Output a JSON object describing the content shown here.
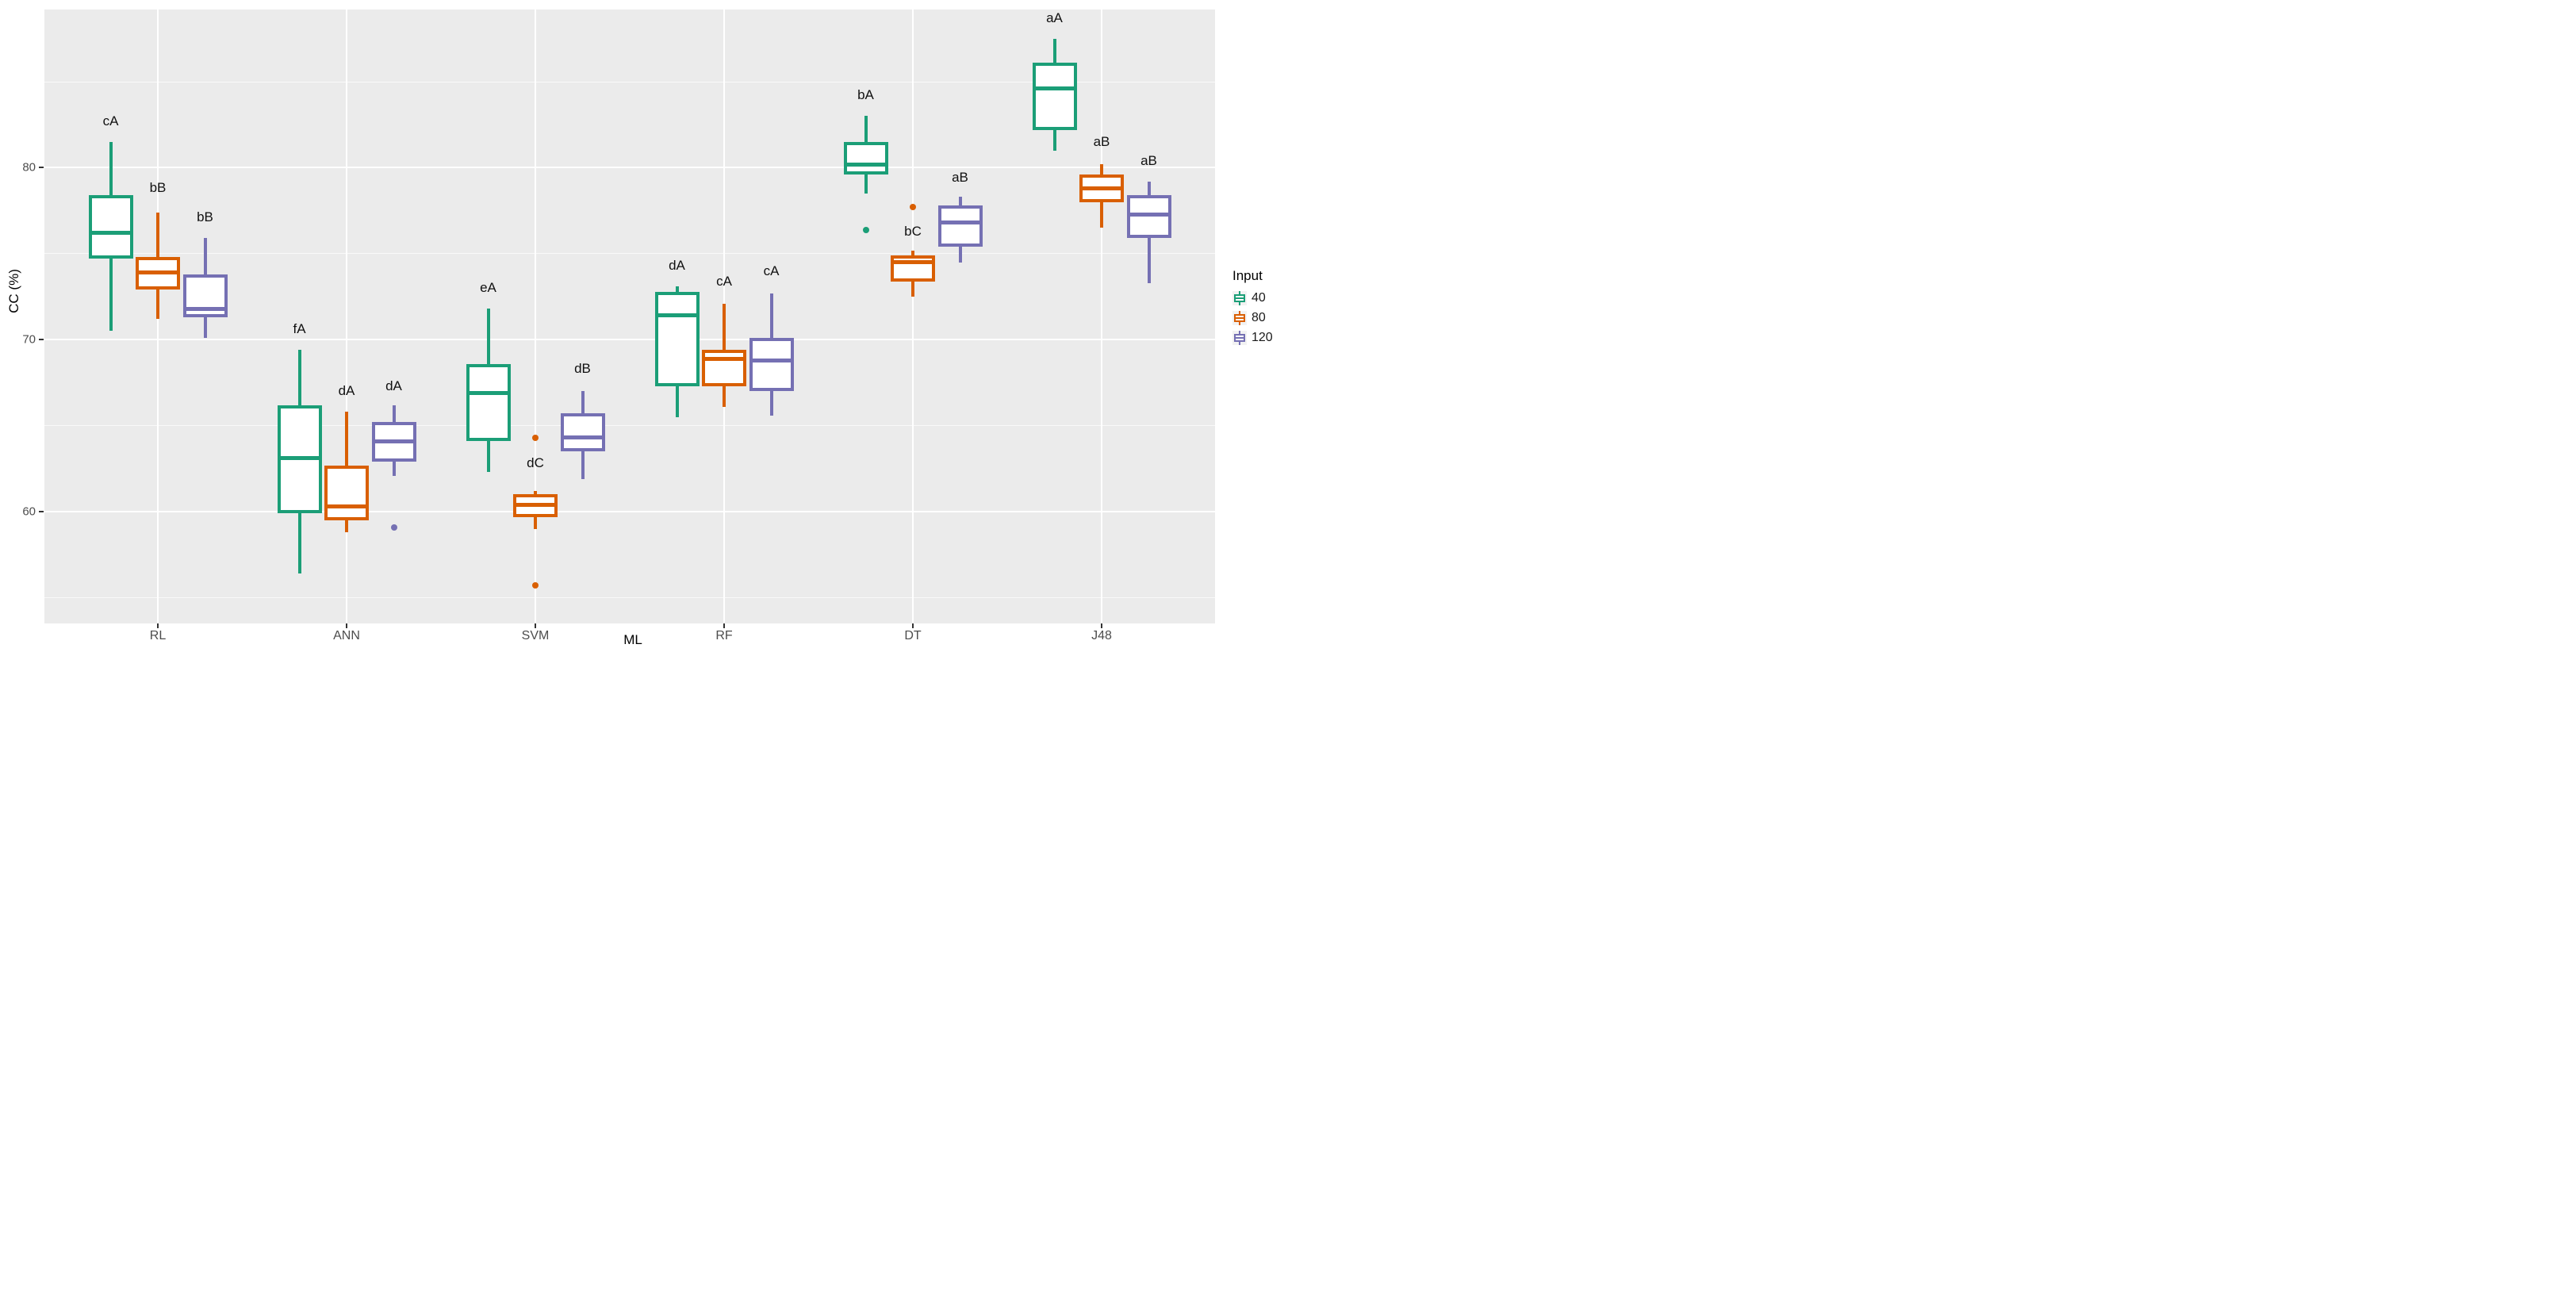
{
  "figure": {
    "y_axis": {
      "title": "CC (%)",
      "major_ticks": [
        80,
        70,
        60
      ],
      "minor_ticks": [
        85,
        75,
        65,
        55
      ],
      "domain_top": 89.2,
      "domain_bottom": 53.5
    },
    "x_axis": {
      "title": "ML",
      "categories": [
        "RL",
        "ANN",
        "SVM",
        "RF",
        "DT",
        "J48"
      ]
    },
    "legend": {
      "title": "Input",
      "items": [
        {
          "label": "40",
          "color": "#1B9E77"
        },
        {
          "label": "80",
          "color": "#D95F02"
        },
        {
          "label": "120",
          "color": "#7570B3"
        }
      ]
    },
    "colors": {
      "panel_bg": "#EBEBEB",
      "grid": "#FFFFFF",
      "axis_text": "#4D4D4D",
      "title_text": "#000000",
      "sig_text": "#111111",
      "legend_key_bg": "#F2F2F2",
      "green": "#1B9E77",
      "orange": "#D95F02",
      "purple": "#7570B3"
    }
  },
  "chart_data": {
    "type": "boxplot",
    "title": "",
    "xlabel": "ML",
    "ylabel": "CC (%)",
    "ylim": [
      53.5,
      89.2
    ],
    "grid": "major-and-minor",
    "legend_position": "right",
    "categories": [
      "RL",
      "ANN",
      "SVM",
      "RF",
      "DT",
      "J48"
    ],
    "series": [
      {
        "name": "40",
        "color": "#1B9E77",
        "boxes": [
          {
            "category": "RL",
            "low": 70.5,
            "q1": 74.7,
            "median": 76.2,
            "q3": 78.4,
            "high": 81.5,
            "outliers": [],
            "sig_label": "cA",
            "sig_label_y": 82.7
          },
          {
            "category": "ANN",
            "low": 56.4,
            "q1": 59.9,
            "median": 63.1,
            "q3": 66.2,
            "high": 69.4,
            "outliers": [],
            "sig_label": "fA",
            "sig_label_y": 70.6
          },
          {
            "category": "SVM",
            "low": 62.3,
            "q1": 64.1,
            "median": 66.9,
            "q3": 68.6,
            "high": 71.8,
            "outliers": [],
            "sig_label": "eA",
            "sig_label_y": 73.0
          },
          {
            "category": "RF",
            "low": 65.5,
            "q1": 67.3,
            "median": 71.4,
            "q3": 72.8,
            "high": 73.1,
            "outliers": [],
            "sig_label": "dA",
            "sig_label_y": 74.3
          },
          {
            "category": "DT",
            "low": 78.5,
            "q1": 79.6,
            "median": 80.2,
            "q3": 81.5,
            "high": 83.0,
            "outliers": [
              76.4
            ],
            "sig_label": "bA",
            "sig_label_y": 84.2
          },
          {
            "category": "J48",
            "low": 81.0,
            "q1": 82.2,
            "median": 84.6,
            "q3": 86.1,
            "high": 87.5,
            "outliers": [],
            "sig_label": "aA",
            "sig_label_y": 88.7
          }
        ]
      },
      {
        "name": "80",
        "color": "#D95F02",
        "boxes": [
          {
            "category": "RL",
            "low": 71.2,
            "q1": 72.9,
            "median": 73.9,
            "q3": 74.8,
            "high": 77.4,
            "outliers": [],
            "sig_label": "bB",
            "sig_label_y": 78.8
          },
          {
            "category": "ANN",
            "low": 58.8,
            "q1": 59.5,
            "median": 60.3,
            "q3": 62.7,
            "high": 65.8,
            "outliers": [],
            "sig_label": "dA",
            "sig_label_y": 67.0
          },
          {
            "category": "SVM",
            "low": 59.0,
            "q1": 59.7,
            "median": 60.4,
            "q3": 61.0,
            "high": 61.2,
            "outliers": [
              64.3,
              55.7
            ],
            "sig_label": "dC",
            "sig_label_y": 62.8
          },
          {
            "category": "RF",
            "low": 66.1,
            "q1": 67.3,
            "median": 68.9,
            "q3": 69.4,
            "high": 72.1,
            "outliers": [],
            "sig_label": "cA",
            "sig_label_y": 73.4
          },
          {
            "category": "DT",
            "low": 72.5,
            "q1": 73.4,
            "median": 74.5,
            "q3": 74.9,
            "high": 75.2,
            "outliers": [
              77.7
            ],
            "sig_label": "bC",
            "sig_label_y": 76.3
          },
          {
            "category": "J48",
            "low": 76.5,
            "q1": 78.0,
            "median": 78.8,
            "q3": 79.6,
            "high": 80.2,
            "outliers": [],
            "sig_label": "aB",
            "sig_label_y": 81.5
          }
        ]
      },
      {
        "name": "120",
        "color": "#7570B3",
        "boxes": [
          {
            "category": "RL",
            "low": 70.1,
            "q1": 71.3,
            "median": 71.8,
            "q3": 73.8,
            "high": 75.9,
            "outliers": [],
            "sig_label": "bB",
            "sig_label_y": 77.1
          },
          {
            "category": "ANN",
            "low": 62.1,
            "q1": 62.9,
            "median": 64.1,
            "q3": 65.2,
            "high": 66.2,
            "outliers": [
              59.1
            ],
            "sig_label": "dA",
            "sig_label_y": 67.3
          },
          {
            "category": "SVM",
            "low": 61.9,
            "q1": 63.5,
            "median": 64.3,
            "q3": 65.7,
            "high": 67.0,
            "outliers": [],
            "sig_label": "dB",
            "sig_label_y": 68.3
          },
          {
            "category": "RF",
            "low": 65.6,
            "q1": 67.0,
            "median": 68.8,
            "q3": 70.1,
            "high": 72.7,
            "outliers": [],
            "sig_label": "cA",
            "sig_label_y": 74.0
          },
          {
            "category": "DT",
            "low": 74.5,
            "q1": 75.4,
            "median": 76.8,
            "q3": 77.8,
            "high": 78.3,
            "outliers": [],
            "sig_label": "aB",
            "sig_label_y": 79.4
          },
          {
            "category": "J48",
            "low": 73.3,
            "q1": 75.9,
            "median": 77.3,
            "q3": 78.4,
            "high": 79.2,
            "outliers": [],
            "sig_label": "aB",
            "sig_label_y": 80.4
          }
        ]
      }
    ]
  }
}
